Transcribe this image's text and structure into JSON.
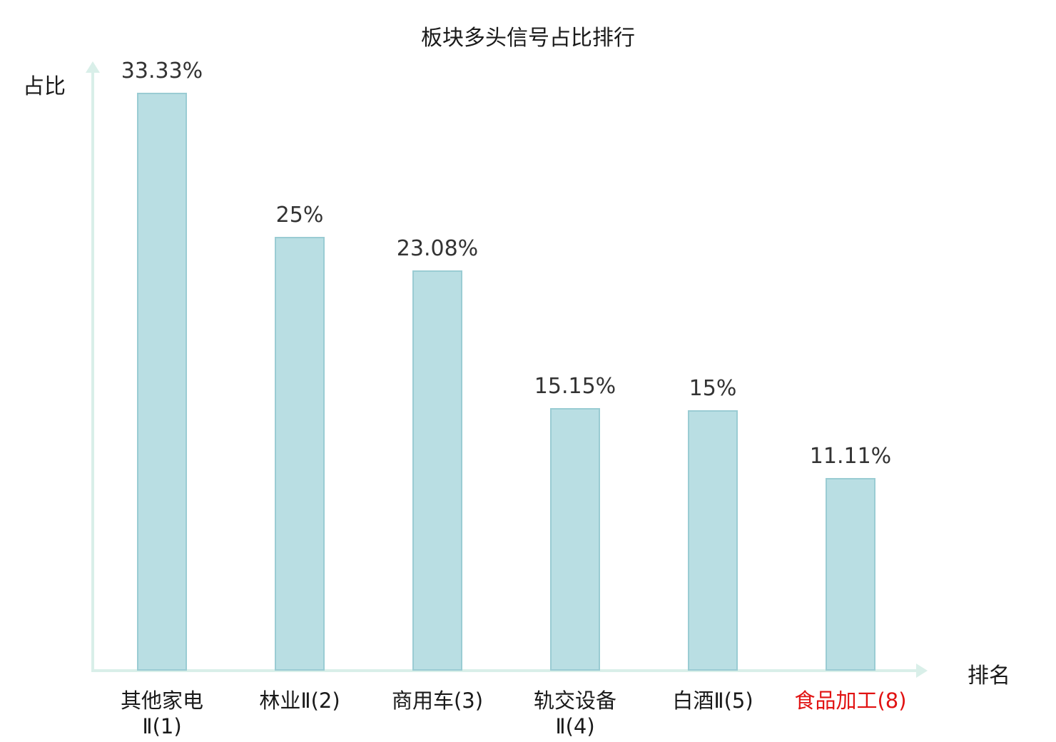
{
  "chart": {
    "title": "板块多头信号占比排行",
    "y_axis_label": "占比",
    "x_axis_label": "排名"
  },
  "chart_data": {
    "type": "bar",
    "title": "板块多头信号占比排行",
    "xlabel": "排名",
    "ylabel": "占比",
    "categories": [
      "其他家电Ⅱ(1)",
      "林业Ⅱ(2)",
      "商用车(3)",
      "轨交设备Ⅱ(4)",
      "白酒Ⅱ(5)",
      "食品加工(8)"
    ],
    "category_lines": [
      [
        "其他家电",
        "Ⅱ(1)"
      ],
      [
        "林业Ⅱ(2)"
      ],
      [
        "商用车(3)"
      ],
      [
        "轨交设备",
        "Ⅱ(4)"
      ],
      [
        "白酒Ⅱ(5)"
      ],
      [
        "食品加工(8)"
      ]
    ],
    "values": [
      33.33,
      25,
      23.08,
      15.15,
      15,
      11.11
    ],
    "value_labels": [
      "33.33%",
      "25%",
      "23.08%",
      "15.15%",
      "15%",
      "11.11%"
    ],
    "category_colors": [
      "#1a1a1a",
      "#1a1a1a",
      "#1a1a1a",
      "#1a1a1a",
      "#1a1a1a",
      "#e11212"
    ],
    "ylim": [
      0,
      35
    ],
    "grid": false,
    "legend": "none",
    "colors": {
      "bar_fill": "#b9dee3",
      "bar_border": "#9accd3",
      "axis": "#d9efe9",
      "value_label": "#333333",
      "highlight": "#e11212"
    }
  }
}
